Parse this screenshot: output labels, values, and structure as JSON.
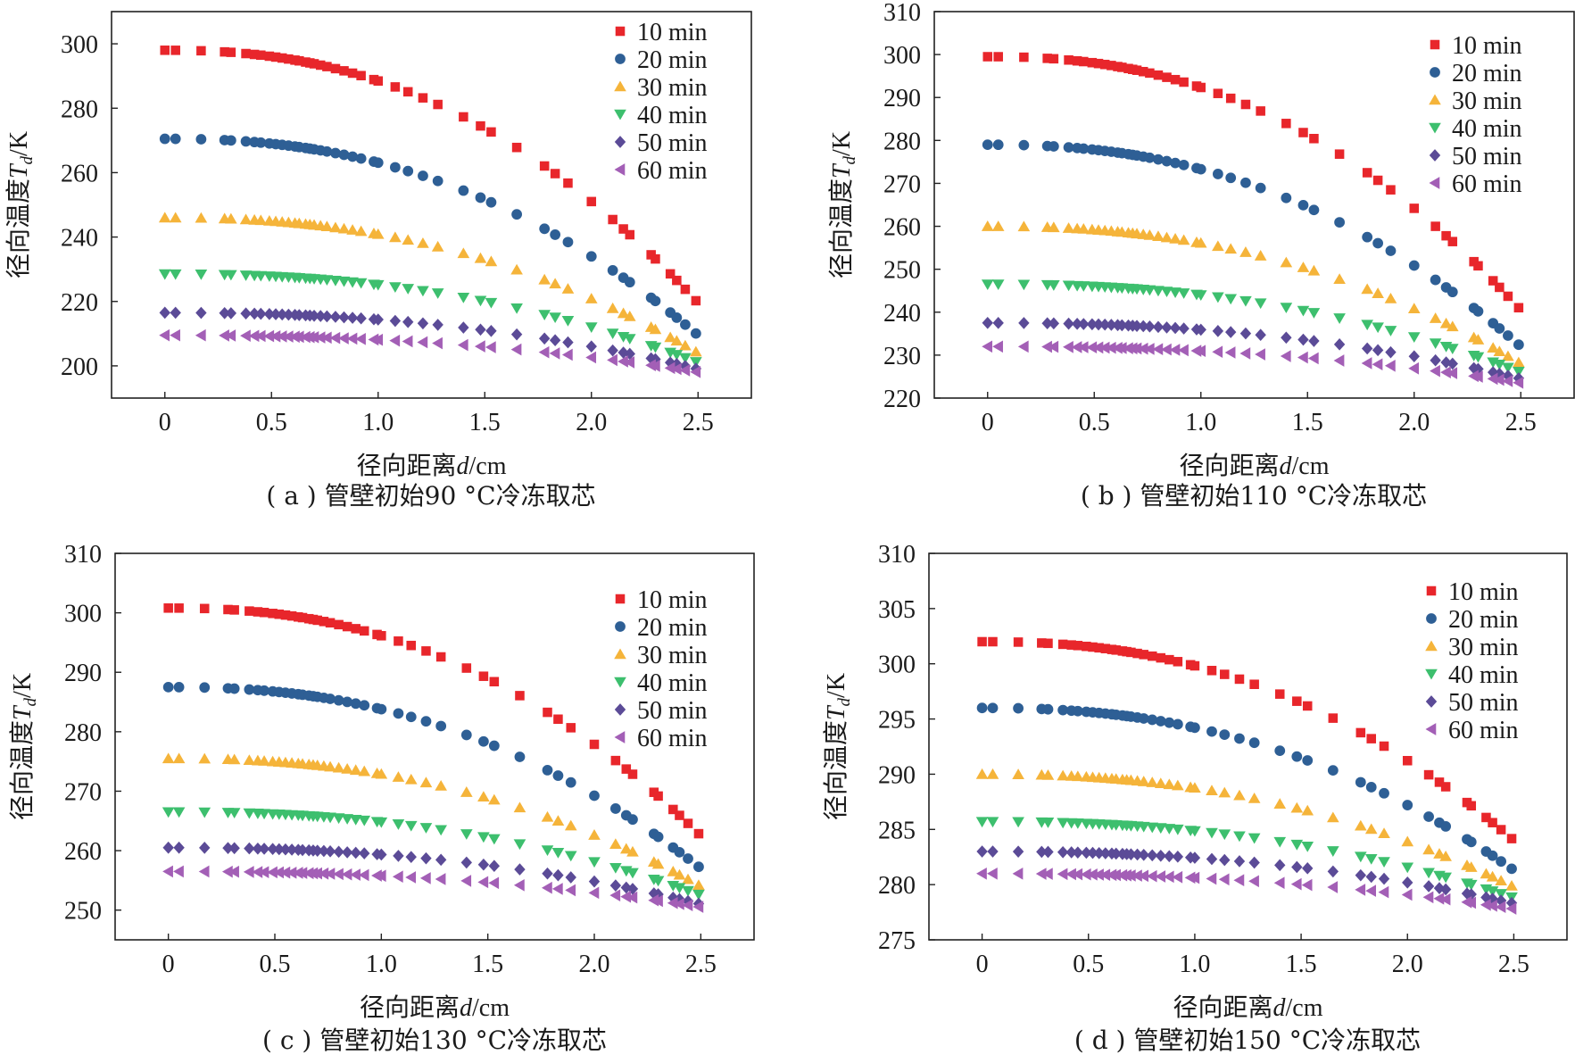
{
  "legend_entries": [
    "10 min",
    "20 min",
    "30 min",
    "40 min",
    "50 min",
    "60 min"
  ],
  "colors": [
    "#e8262b",
    "#2e5f95",
    "#f5b43a",
    "#3dbf6e",
    "#5b4b97",
    "#a35fb6"
  ],
  "chart_data": [
    {
      "type": "scatter",
      "title": "( a ) 管壁初始90 °C冷冻取芯",
      "xlabel": "径向距离d/cm",
      "ylabel": "径向温度T_d/K",
      "xlim": [
        -0.25,
        2.75
      ],
      "ylim": [
        190,
        310
      ],
      "xticks": [
        0,
        0.5,
        1.0,
        1.5,
        2.0,
        2.5
      ],
      "xtick_labels": [
        "0",
        "0.5",
        "1.0",
        "1.5",
        "2.0",
        "2.5"
      ],
      "yticks": [
        200,
        220,
        240,
        260,
        280,
        300
      ],
      "ytick_labels": [
        "200",
        "220",
        "240",
        "260",
        "280",
        "300"
      ],
      "legend_position": "top-right",
      "grid": false,
      "series": [
        {
          "name": "10 min",
          "marker": "square",
          "T0": 298,
          "Tend": 219.5
        },
        {
          "name": "20 min",
          "marker": "circle",
          "T0": 270.5,
          "Tend": 209.5
        },
        {
          "name": "30 min",
          "marker": "triangle-up",
          "T0": 246,
          "Tend": 204
        },
        {
          "name": "40 min",
          "marker": "triangle-down",
          "T0": 228.5,
          "Tend": 201
        },
        {
          "name": "50 min",
          "marker": "diamond",
          "T0": 216.5,
          "Tend": 199
        },
        {
          "name": "60 min",
          "marker": "triangle-left",
          "T0": 209.5,
          "Tend": 198
        }
      ]
    },
    {
      "type": "scatter",
      "title": "( b ) 管壁初始110 °C冷冻取芯",
      "xlabel": "径向距离d/cm",
      "ylabel": "径向温度T_d/K",
      "xlim": [
        -0.25,
        2.75
      ],
      "ylim": [
        220,
        310
      ],
      "xticks": [
        0,
        0.5,
        1.0,
        1.5,
        2.0,
        2.5
      ],
      "xtick_labels": [
        "0",
        "0.5",
        "1.0",
        "1.5",
        "2.0",
        "2.5"
      ],
      "yticks": [
        220,
        230,
        240,
        250,
        260,
        270,
        280,
        290,
        300,
        310
      ],
      "ytick_labels": [
        "220",
        "230",
        "240",
        "250",
        "260",
        "270",
        "280",
        "290",
        "300",
        "310"
      ],
      "legend_position": "top-right",
      "grid": false,
      "series": [
        {
          "name": "10 min",
          "marker": "square",
          "T0": 299.5,
          "Tend": 240.5
        },
        {
          "name": "20 min",
          "marker": "circle",
          "T0": 279,
          "Tend": 232
        },
        {
          "name": "30 min",
          "marker": "triangle-up",
          "T0": 260,
          "Tend": 228
        },
        {
          "name": "40 min",
          "marker": "triangle-down",
          "T0": 246.5,
          "Tend": 226
        },
        {
          "name": "50 min",
          "marker": "diamond",
          "T0": 237.5,
          "Tend": 224.5
        },
        {
          "name": "60 min",
          "marker": "triangle-left",
          "T0": 232,
          "Tend": 223.5
        }
      ]
    },
    {
      "type": "scatter",
      "title": "( c ) 管壁初始130 °C冷冻取芯",
      "xlabel": "径向距离d/cm",
      "ylabel": "径向温度T_d/K",
      "xlim": [
        -0.25,
        2.75
      ],
      "ylim": [
        245,
        310
      ],
      "xticks": [
        0,
        0.5,
        1.0,
        1.5,
        2.0,
        2.5
      ],
      "xtick_labels": [
        "0",
        "0.5",
        "1.0",
        "1.5",
        "2.0",
        "2.5"
      ],
      "yticks": [
        250,
        260,
        270,
        280,
        290,
        300,
        310
      ],
      "ytick_labels": [
        "250",
        "260",
        "270",
        "280",
        "290",
        "300",
        "310"
      ],
      "legend_position": "top-right",
      "grid": false,
      "series": [
        {
          "name": "10 min",
          "marker": "square",
          "T0": 300.8,
          "Tend": 262.5
        },
        {
          "name": "20 min",
          "marker": "circle",
          "T0": 287.5,
          "Tend": 257
        },
        {
          "name": "30 min",
          "marker": "triangle-up",
          "T0": 275.5,
          "Tend": 254
        },
        {
          "name": "40 min",
          "marker": "triangle-down",
          "T0": 266.5,
          "Tend": 252.5
        },
        {
          "name": "50 min",
          "marker": "diamond",
          "T0": 260.5,
          "Tend": 251
        },
        {
          "name": "60 min",
          "marker": "triangle-left",
          "T0": 256.5,
          "Tend": 250.5
        }
      ]
    },
    {
      "type": "scatter",
      "title": "( d ) 管壁初始150 °C冷冻取芯",
      "xlabel": "径向距离d/cm",
      "ylabel": "径向温度T_d/K",
      "xlim": [
        -0.25,
        2.75
      ],
      "ylim": [
        275,
        310
      ],
      "xticks": [
        0,
        0.5,
        1.0,
        1.5,
        2.0,
        2.5
      ],
      "xtick_labels": [
        "0",
        "0.5",
        "1.0",
        "1.5",
        "2.0",
        "2.5"
      ],
      "yticks": [
        275,
        280,
        285,
        290,
        295,
        300,
        305,
        310
      ],
      "ytick_labels": [
        "275",
        "280",
        "285",
        "290",
        "295",
        "300",
        "305",
        "310"
      ],
      "legend_position": "top-right",
      "grid": false,
      "series": [
        {
          "name": "10 min",
          "marker": "square",
          "T0": 302,
          "Tend": 284
        },
        {
          "name": "20 min",
          "marker": "circle",
          "T0": 296,
          "Tend": 281.3
        },
        {
          "name": "30 min",
          "marker": "triangle-up",
          "T0": 290,
          "Tend": 279.8
        },
        {
          "name": "40 min",
          "marker": "triangle-down",
          "T0": 285.7,
          "Tend": 278.8
        },
        {
          "name": "50 min",
          "marker": "diamond",
          "T0": 283,
          "Tend": 278.3
        },
        {
          "name": "60 min",
          "marker": "triangle-left",
          "T0": 281,
          "Tend": 277.8
        }
      ]
    }
  ]
}
